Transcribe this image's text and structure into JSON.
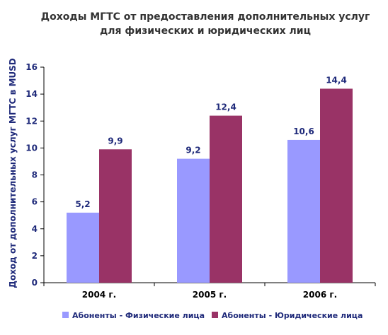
{
  "chart_data": {
    "type": "bar",
    "title_line1": "Доходы МГТС от предоставления дополнительных услуг",
    "title_line2": "для физических и юридических лиц",
    "xlabel": "",
    "ylabel": "Доход от дополнительных услуг МГТС в MUSD",
    "ylim": [
      0,
      16
    ],
    "yticks": [
      "0",
      "2",
      "4",
      "6",
      "8",
      "10",
      "12",
      "14",
      "16"
    ],
    "categories": [
      "2004 г.",
      "2005 г.",
      "2006 г."
    ],
    "series": [
      {
        "name": "Абоненты - Физические лица",
        "values": [
          5.2,
          9.2,
          10.6
        ],
        "labels": [
          "5,2",
          "9,2",
          "10,6"
        ],
        "color": "#9999ff"
      },
      {
        "name": "Абоненты - Юридические лица",
        "values": [
          9.9,
          12.4,
          14.4
        ],
        "labels": [
          "9,9",
          "12,4",
          "14,4"
        ],
        "color": "#993366"
      }
    ],
    "grid": false,
    "legend_position": "bottom",
    "title_color": "#333333",
    "axis_label_color": "#1f2a7a"
  }
}
